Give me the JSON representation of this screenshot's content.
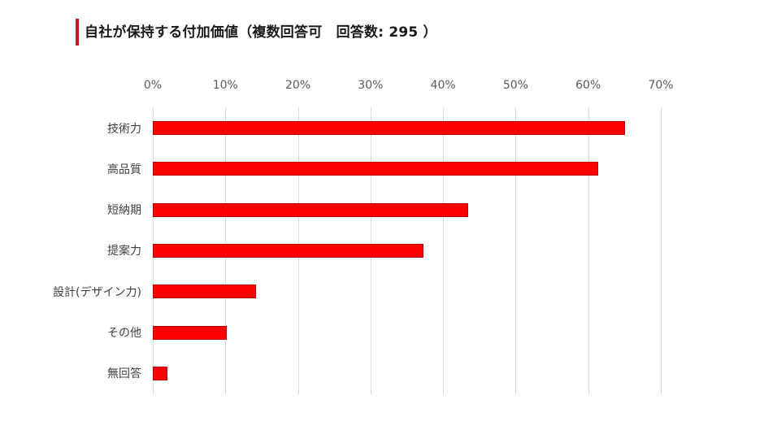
{
  "header": {
    "title": "自社が保持する付加価値（複数回答可　回答数: 295 ）",
    "accent_color": "#d0121b"
  },
  "chart_data": {
    "type": "bar",
    "orientation": "horizontal",
    "title": "自社が保持する付加価値（複数回答可　回答数: 295 ）",
    "xlabel": "",
    "ylabel": "",
    "xlim": [
      0,
      70
    ],
    "x_ticks": [
      "0%",
      "10%",
      "20%",
      "30%",
      "40%",
      "50%",
      "60%",
      "70%"
    ],
    "x_axis_position": "top",
    "grid": true,
    "legend": false,
    "bar_color": "#ff0000",
    "categories": [
      "技術力",
      "高品質",
      "短納期",
      "提案力",
      "設計(デザイン力)",
      "その他",
      "無回答"
    ],
    "values": [
      65.1,
      61.4,
      43.4,
      37.3,
      14.2,
      10.2,
      2.0
    ],
    "unit": "%"
  }
}
